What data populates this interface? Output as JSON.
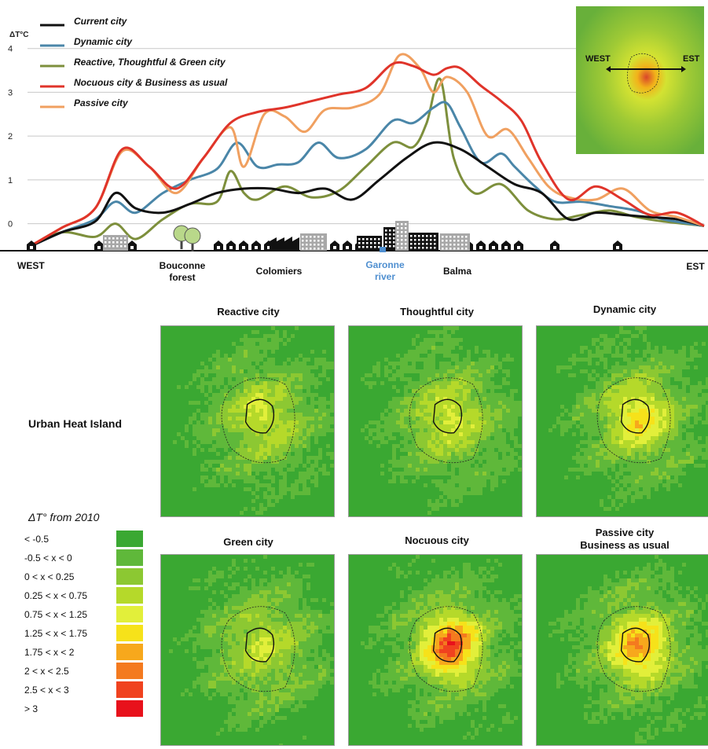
{
  "chart_data": {
    "type": "line",
    "title": "",
    "ylabel": "ΔT°C",
    "xlabel": "",
    "ylim": [
      -0.6,
      4.3
    ],
    "xlim": [
      0,
      100
    ],
    "yticks": [
      "0",
      "1",
      "2",
      "3",
      "4"
    ],
    "grid": true,
    "legend_position": "top-left",
    "x_places": [
      {
        "label": "WEST",
        "x": 2
      },
      {
        "label": "Bouconne\nforest",
        "x": 23
      },
      {
        "label": "Colomiers",
        "x": 36
      },
      {
        "label": "Garonne\nriver",
        "x": 54
      },
      {
        "label": "Balma",
        "x": 64
      },
      {
        "label": "EST",
        "x": 98
      }
    ],
    "series": [
      {
        "name": "Current city",
        "color": "#111111",
        "x": [
          0,
          5,
          10,
          13,
          16,
          20,
          24,
          28,
          32,
          36,
          40,
          44,
          48,
          52,
          56,
          60,
          64,
          68,
          72,
          76,
          80,
          84,
          88,
          92,
          96,
          100
        ],
        "y": [
          -0.55,
          -0.2,
          0.05,
          0.7,
          0.35,
          0.25,
          0.45,
          0.7,
          0.8,
          0.8,
          0.7,
          0.8,
          0.55,
          1.0,
          1.5,
          1.85,
          1.7,
          1.3,
          0.9,
          0.7,
          0.1,
          0.25,
          0.2,
          0.15,
          0.1,
          -0.05
        ]
      },
      {
        "name": "Dynamic city",
        "color": "#4a86a8",
        "x": [
          0,
          5,
          10,
          13,
          16,
          20,
          24,
          28,
          31,
          34,
          37,
          40,
          43,
          46,
          50,
          54,
          57,
          60,
          62,
          64,
          67,
          70,
          72,
          75,
          78,
          82,
          86,
          90,
          94,
          100
        ],
        "y": [
          -0.55,
          -0.2,
          0.1,
          0.5,
          0.25,
          0.7,
          1.0,
          1.25,
          1.85,
          1.3,
          1.35,
          1.4,
          1.85,
          1.5,
          1.7,
          2.35,
          2.3,
          2.65,
          2.75,
          2.2,
          1.4,
          1.6,
          1.3,
          0.85,
          0.5,
          0.5,
          0.4,
          0.3,
          0.1,
          -0.05
        ]
      },
      {
        "name": "Reactive, Thoughtful & Green city",
        "color": "#7d8f3c",
        "x": [
          0,
          5,
          10,
          13,
          16,
          20,
          24,
          28,
          30,
          32,
          34,
          38,
          42,
          46,
          50,
          54,
          57,
          59,
          61,
          63,
          66,
          70,
          74,
          78,
          82,
          86,
          90,
          94,
          100
        ],
        "y": [
          -0.55,
          -0.2,
          -0.3,
          0.0,
          -0.35,
          0.1,
          0.45,
          0.5,
          1.2,
          0.7,
          0.55,
          0.85,
          0.6,
          0.75,
          1.3,
          1.85,
          1.75,
          2.3,
          3.3,
          1.5,
          0.7,
          0.9,
          0.3,
          0.1,
          0.2,
          0.3,
          0.15,
          0.05,
          -0.05
        ]
      },
      {
        "name": "Nocuous city & Business as usual",
        "color": "#e0342a",
        "x": [
          0,
          5,
          10,
          14,
          18,
          22,
          26,
          30,
          34,
          38,
          42,
          46,
          50,
          54,
          57,
          60,
          62,
          64,
          67,
          70,
          73,
          76,
          80,
          84,
          88,
          92,
          96,
          100
        ],
        "y": [
          -0.55,
          -0.1,
          0.35,
          1.7,
          1.3,
          0.8,
          1.5,
          2.3,
          2.55,
          2.65,
          2.8,
          2.95,
          3.1,
          3.65,
          3.6,
          3.4,
          3.55,
          3.55,
          3.15,
          2.8,
          2.35,
          1.4,
          0.55,
          0.85,
          0.55,
          0.2,
          0.25,
          -0.05
        ]
      },
      {
        "name": "Passive city",
        "color": "#f0a060",
        "x": [
          0,
          5,
          10,
          14,
          18,
          22,
          26,
          30,
          32,
          35,
          38,
          41,
          44,
          48,
          52,
          55,
          58,
          60,
          62,
          65,
          68,
          71,
          74,
          77,
          80,
          84,
          88,
          92,
          96,
          100
        ],
        "y": [
          -0.55,
          -0.1,
          0.35,
          1.65,
          1.3,
          0.7,
          1.5,
          2.2,
          1.3,
          2.5,
          2.45,
          2.1,
          2.6,
          2.65,
          2.95,
          3.85,
          3.55,
          3.0,
          3.35,
          3.0,
          2.0,
          2.15,
          1.5,
          0.85,
          0.6,
          0.55,
          0.8,
          0.3,
          0.15,
          -0.05
        ]
      }
    ]
  },
  "inset": {
    "west_label": "WEST",
    "est_label": "EST"
  },
  "panels": [
    {
      "title": "Reactive city",
      "intensity": 0.18
    },
    {
      "title": "Thoughtful city",
      "intensity": 0.2
    },
    {
      "title": "Dynamic city",
      "intensity": 0.45
    },
    {
      "title": "Green city",
      "intensity": 0.12
    },
    {
      "title": "Nocuous city",
      "intensity": 0.95
    },
    {
      "title": "Passive city\nBusiness as usual",
      "intensity": 0.72
    }
  ],
  "row_label": "Urban Heat Island",
  "scale": {
    "title": "ΔT° from 2010",
    "classes": [
      {
        "label": "< -0.5",
        "color": "#3aa832"
      },
      {
        "label": "-0.5 < x < 0",
        "color": "#5fb83a"
      },
      {
        "label": "0 < x < 0.25",
        "color": "#8cc832"
      },
      {
        "label": "0.25 < x < 0.75",
        "color": "#b5d92a"
      },
      {
        "label": "0.75 < x < 1.25",
        "color": "#e2ef3a"
      },
      {
        "label": "1.25 < x < 1.75",
        "color": "#f6e21a"
      },
      {
        "label": "1.75 < x < 2",
        "color": "#f7a81c"
      },
      {
        "label": "2 < x < 2.5",
        "color": "#f47a1f"
      },
      {
        "label": "2.5 < x < 3",
        "color": "#f0421f"
      },
      {
        "label": "> 3",
        "color": "#e8111b"
      }
    ]
  }
}
